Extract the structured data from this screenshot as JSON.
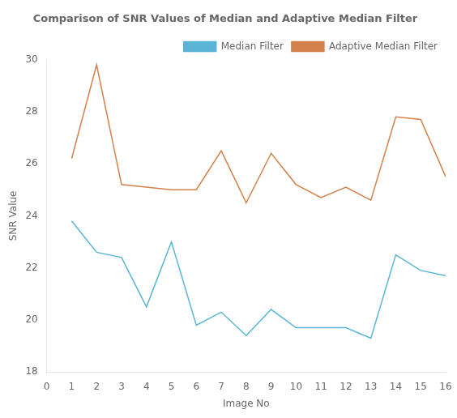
{
  "chart_data": {
    "type": "line",
    "title": "Comparison of SNR Values of Median and Adaptive Median Filter",
    "xlabel": "Image No",
    "ylabel": "SNR Value",
    "x": [
      1,
      2,
      3,
      4,
      5,
      6,
      7,
      8,
      9,
      10,
      11,
      12,
      13,
      14,
      15,
      16
    ],
    "series": [
      {
        "name": "Median Filter",
        "color": "#5ab4d6",
        "values": [
          23.8,
          22.6,
          22.4,
          20.5,
          23.0,
          19.8,
          20.3,
          19.4,
          20.4,
          19.7,
          19.7,
          19.7,
          19.3,
          22.5,
          21.9,
          21.7
        ]
      },
      {
        "name": "Adaptive Median Filter",
        "color": "#d4804a",
        "values": [
          26.2,
          29.8,
          25.2,
          25.1,
          25.0,
          25.0,
          26.5,
          24.5,
          26.4,
          25.2,
          24.7,
          25.1,
          24.6,
          27.8,
          27.7,
          25.5
        ]
      }
    ],
    "xlim": [
      0,
      16
    ],
    "ylim": [
      18,
      30
    ],
    "xticks": [
      0,
      1,
      2,
      3,
      4,
      5,
      6,
      7,
      8,
      9,
      10,
      11,
      12,
      13,
      14,
      15,
      16
    ],
    "yticks": [
      18,
      20,
      22,
      24,
      26,
      28,
      30
    ],
    "grid": false,
    "legend": "upper right"
  }
}
